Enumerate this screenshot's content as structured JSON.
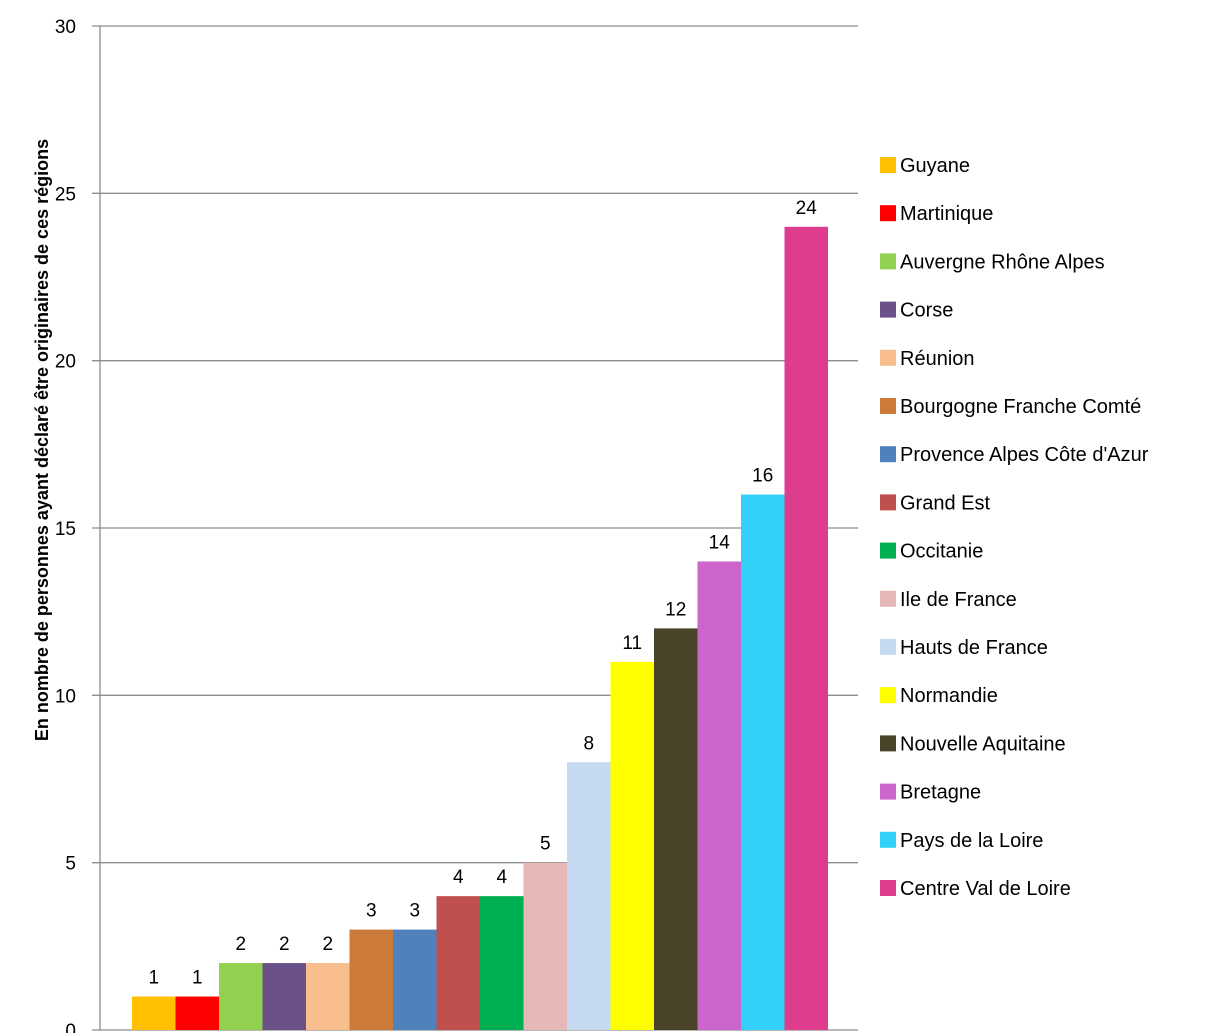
{
  "chart_data": {
    "type": "bar",
    "title": "",
    "xlabel": "",
    "ylabel": "En nombre de personnes ayant déclaré être originaires de ces régions",
    "ylim": [
      0,
      30
    ],
    "yticks": [
      0,
      5,
      10,
      15,
      20,
      25,
      30
    ],
    "grid": true,
    "legend_position": "right",
    "series": [
      {
        "name": "Guyane",
        "value": 1,
        "color": "#FFC000"
      },
      {
        "name": "Martinique",
        "value": 1,
        "color": "#FF0000"
      },
      {
        "name": "Auvergne Rhône Alpes",
        "value": 2,
        "color": "#92D050"
      },
      {
        "name": "Corse",
        "value": 2,
        "color": "#6A5189"
      },
      {
        "name": "Réunion",
        "value": 2,
        "color": "#F9BE8E"
      },
      {
        "name": "Bourgogne Franche Comté",
        "value": 3,
        "color": "#CC7A39"
      },
      {
        "name": "Provence Alpes Côte d'Azur",
        "value": 3,
        "color": "#4F81BD"
      },
      {
        "name": "Grand Est",
        "value": 4,
        "color": "#C0504D"
      },
      {
        "name": "Occitanie",
        "value": 4,
        "color": "#00B050"
      },
      {
        "name": "Ile de France",
        "value": 5,
        "color": "#E6B8B7"
      },
      {
        "name": "Hauts de France",
        "value": 8,
        "color": "#C5D9F1"
      },
      {
        "name": "Normandie",
        "value": 11,
        "color": "#FFFF00"
      },
      {
        "name": "Nouvelle Aquitaine",
        "value": 12,
        "color": "#494429"
      },
      {
        "name": "Bretagne",
        "value": 14,
        "color": "#CC66CC"
      },
      {
        "name": "Pays de la Loire",
        "value": 16,
        "color": "#33D1F7"
      },
      {
        "name": "Centre Val de Loire",
        "value": 24,
        "color": "#DE3C8C"
      }
    ]
  }
}
